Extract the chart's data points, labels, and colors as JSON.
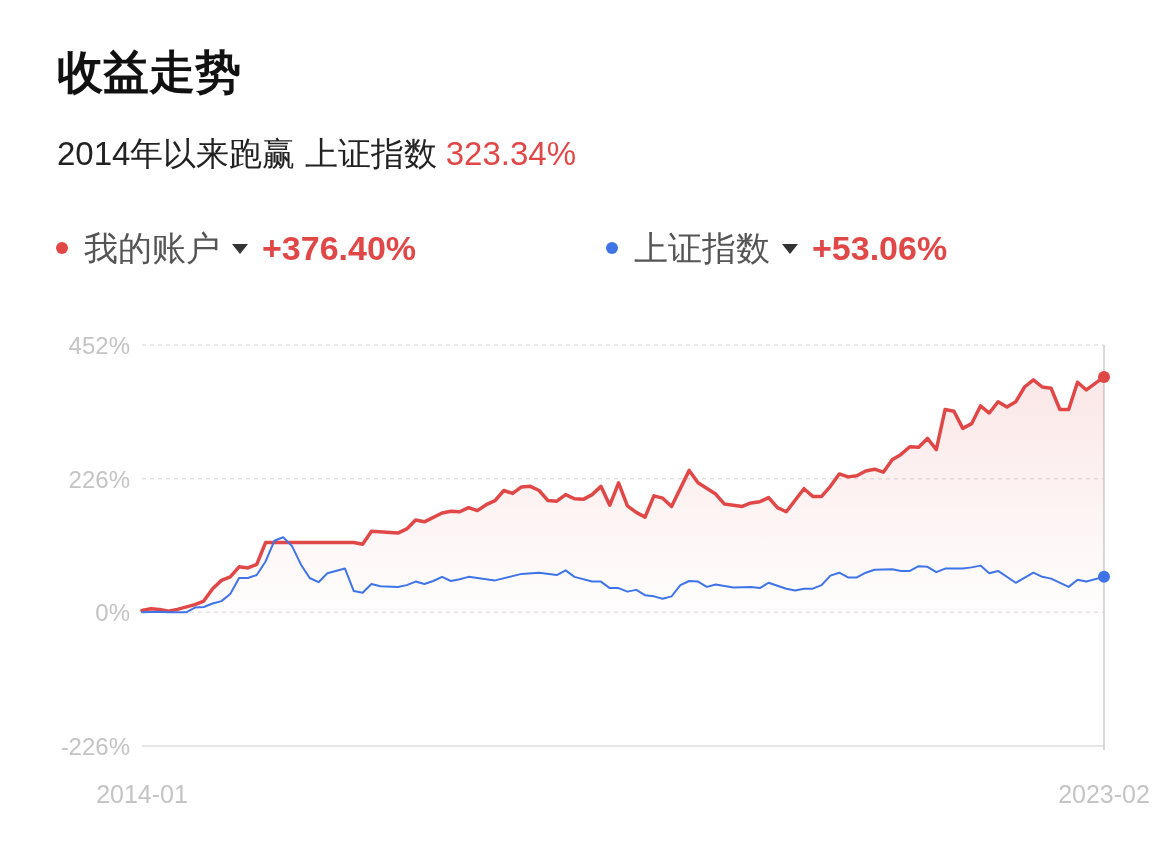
{
  "chart_data": {
    "type": "line",
    "title": "收益走势",
    "subtitle": "2014年以来跑赢 上证指数 323.34%",
    "annotations": [
      "+376.40%",
      "+53.06%"
    ],
    "legend": "top left",
    "grid": "y",
    "line_style": "solid",
    "ylim": [
      -226,
      452
    ],
    "yticks": [
      {
        "value": 452,
        "label": "452%"
      },
      {
        "value": 226,
        "label": "226%"
      },
      {
        "value": 0,
        "label": "0%"
      },
      {
        "value": -226,
        "label": "-226%"
      }
    ],
    "xlim": [
      "2014-01",
      "2023-02"
    ],
    "xticks": [
      {
        "value": "2014-01",
        "label": "2014-01"
      },
      {
        "value": "2023-02",
        "label": "2023-02"
      }
    ],
    "ref_lines": [
      {
        "axis": "x",
        "value": "2023-02",
        "color": "#cccccc"
      }
    ],
    "series": [
      {
        "name": "我的账户",
        "type": "area",
        "color": "#e04848",
        "x": [
          "2014-01",
          "2014-02",
          "2014-03",
          "2014-04",
          "2014-05",
          "2014-07",
          "2014-08",
          "2014-09",
          "2014-10",
          "2014-11",
          "2014-12",
          "2015-01",
          "2015-02",
          "2015-03",
          "2016-01",
          "2016-02",
          "2016-03",
          "2016-06",
          "2016-07",
          "2016-08",
          "2016-09",
          "2016-11",
          "2016-12",
          "2017-01",
          "2017-02",
          "2017-03",
          "2017-04",
          "2017-05",
          "2017-06",
          "2017-07",
          "2017-08",
          "2017-09",
          "2017-10",
          "2017-11",
          "2017-12",
          "2018-01",
          "2018-02",
          "2018-03",
          "2018-04",
          "2018-05",
          "2018-06",
          "2018-07",
          "2018-08",
          "2018-09",
          "2018-10",
          "2018-11",
          "2018-12",
          "2019-01",
          "2019-03",
          "2019-04",
          "2019-06",
          "2019-07",
          "2019-09",
          "2019-10",
          "2019-11",
          "2019-12",
          "2020-01",
          "2020-02",
          "2020-04",
          "2020-05",
          "2020-06",
          "2020-07",
          "2020-08",
          "2020-09",
          "2020-10",
          "2020-11",
          "2020-12",
          "2021-01",
          "2021-02",
          "2021-03",
          "2021-04",
          "2021-05",
          "2021-06",
          "2021-07",
          "2021-08",
          "2021-09",
          "2021-10",
          "2021-11",
          "2021-12",
          "2022-01",
          "2022-02",
          "2022-03",
          "2022-04",
          "2022-05",
          "2022-06",
          "2022-07",
          "2022-08",
          "2022-09",
          "2022-10",
          "2022-11",
          "2022-12",
          "2023-02"
        ],
        "values": [
          3,
          6,
          5,
          2,
          5,
          13,
          19,
          40,
          54,
          60,
          77,
          75,
          81,
          118,
          118,
          115,
          137,
          134,
          141,
          156,
          153,
          168,
          171,
          170,
          177,
          172,
          182,
          189,
          206,
          201,
          212,
          213,
          206,
          189,
          188,
          199,
          192,
          191,
          199,
          213,
          181,
          219,
          180,
          169,
          161,
          197,
          193,
          179,
          240,
          219,
          200,
          183,
          179,
          185,
          187,
          194,
          177,
          170,
          209,
          196,
          196,
          213,
          234,
          229,
          231,
          239,
          242,
          237,
          258,
          267,
          280,
          279,
          294,
          275,
          343,
          340,
          311,
          319,
          349,
          337,
          356,
          347,
          356,
          381,
          393,
          381,
          379,
          343,
          343,
          389,
          376,
          398
        ]
      },
      {
        "name": "上证指数",
        "color": "#3f74e6",
        "x": [
          "2014-01",
          "2014-03",
          "2014-04",
          "2014-06",
          "2014-07",
          "2014-08",
          "2014-09",
          "2014-10",
          "2014-11",
          "2014-12",
          "2015-01",
          "2015-02",
          "2015-03",
          "2015-04",
          "2015-05",
          "2015-06",
          "2015-07",
          "2015-08",
          "2015-09",
          "2015-10",
          "2015-12",
          "2016-01",
          "2016-02",
          "2016-03",
          "2016-04",
          "2016-06",
          "2016-07",
          "2016-08",
          "2016-09",
          "2016-10",
          "2016-11",
          "2016-12",
          "2017-01",
          "2017-02",
          "2017-05",
          "2017-08",
          "2017-10",
          "2017-12",
          "2018-01",
          "2018-02",
          "2018-04",
          "2018-05",
          "2018-06",
          "2018-07",
          "2018-08",
          "2018-09",
          "2018-10",
          "2018-11",
          "2018-12",
          "2019-01",
          "2019-02",
          "2019-03",
          "2019-04",
          "2019-05",
          "2019-06",
          "2019-08",
          "2019-10",
          "2019-11",
          "2019-12",
          "2020-01",
          "2020-02",
          "2020-03",
          "2020-04",
          "2020-05",
          "2020-06",
          "2020-07",
          "2020-08",
          "2020-09",
          "2020-10",
          "2020-11",
          "2020-12",
          "2021-02",
          "2021-03",
          "2021-04",
          "2021-05",
          "2021-06",
          "2021-07",
          "2021-08",
          "2021-10",
          "2021-11",
          "2021-12",
          "2022-01",
          "2022-02",
          "2022-04",
          "2022-06",
          "2022-07",
          "2022-08",
          "2022-10",
          "2022-11",
          "2022-12",
          "2023-02"
        ],
        "values": [
          0,
          1,
          0,
          0,
          8,
          9,
          15,
          19,
          31,
          58,
          58,
          63,
          86,
          121,
          127,
          112,
          81,
          58,
          51,
          66,
          74,
          36,
          33,
          48,
          44,
          43,
          46,
          52,
          48,
          53,
          60,
          53,
          56,
          60,
          54,
          65,
          67,
          63,
          71,
          60,
          52,
          52,
          41,
          41,
          35,
          38,
          29,
          27,
          23,
          27,
          46,
          53,
          52,
          43,
          47,
          42,
          43,
          41,
          50,
          45,
          40,
          37,
          40,
          40,
          46,
          62,
          67,
          59,
          59,
          67,
          72,
          73,
          70,
          70,
          78,
          77,
          68,
          74,
          74,
          76,
          79,
          66,
          70,
          50,
          67,
          60,
          57,
          43,
          55,
          52,
          60
        ]
      },
      {
        "type": "scatter",
        "marker": "circle",
        "color": "#e04848",
        "x": [
          "2023-02"
        ],
        "values": [
          398
        ]
      },
      {
        "type": "scatter",
        "marker": "circle",
        "color": "#3f74e6",
        "x": [
          "2023-02"
        ],
        "values": [
          60
        ]
      }
    ]
  }
}
